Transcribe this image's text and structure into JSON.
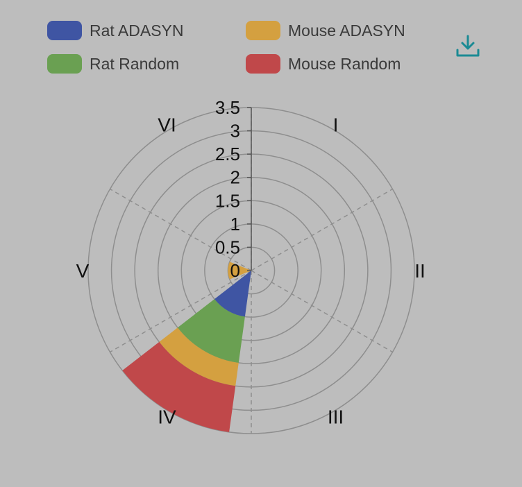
{
  "chart_data": {
    "type": "polar-stacked-bar",
    "categories": [
      "I",
      "II",
      "III",
      "IV",
      "V",
      "VI"
    ],
    "radial_axis": {
      "ticks": [
        "0",
        "0.5",
        "1",
        "1.5",
        "2",
        "2.5",
        "3",
        "3.5"
      ],
      "min": 0,
      "max": 3.5
    },
    "series": [
      {
        "name": "Rat ADASYN",
        "color": "#3f55a3",
        "values": [
          0,
          0,
          0,
          1.0,
          0,
          0
        ]
      },
      {
        "name": "Mouse ADASYN",
        "color": "#d4a040",
        "values": [
          0,
          0,
          0,
          0,
          0.5,
          0
        ]
      },
      {
        "name": "Rat Random",
        "color": "#6aa052",
        "values": [
          0,
          0,
          0,
          1.0,
          0,
          0
        ]
      },
      {
        "name": "Mouse ADASYN",
        "color": "#d4a040",
        "values": [
          0,
          0,
          0,
          0.5,
          0,
          0
        ]
      },
      {
        "name": "Mouse Random",
        "color": "#c0484a",
        "values": [
          0,
          0,
          0,
          1.0,
          0,
          0
        ]
      }
    ],
    "legend": {
      "position": "top",
      "items": [
        {
          "name": "Rat ADASYN",
          "color": "#3f55a3"
        },
        {
          "name": "Mouse ADASYN",
          "color": "#d4a040"
        },
        {
          "name": "Rat Random",
          "color": "#6aa052"
        },
        {
          "name": "Mouse Random",
          "color": "#c0484a"
        }
      ]
    },
    "grid": true
  },
  "toolbar": {
    "download_icon": "download-icon",
    "accent": "#1b8a94"
  }
}
